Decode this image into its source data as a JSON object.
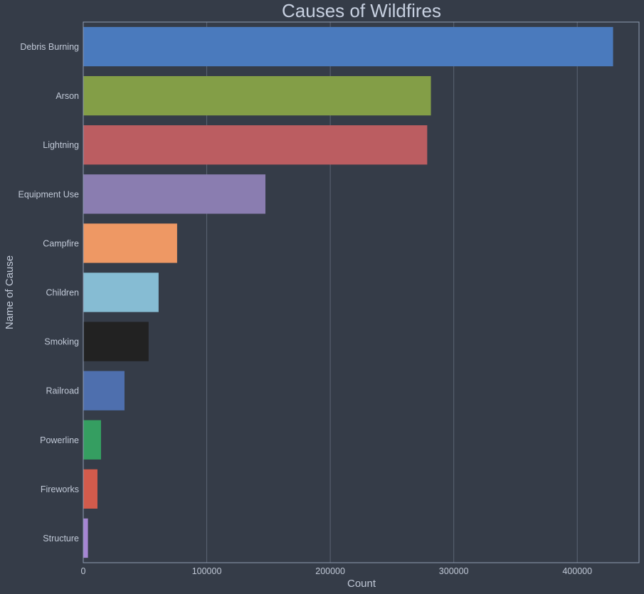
{
  "chart_data": {
    "type": "bar",
    "orientation": "horizontal",
    "title": "Causes of Wildfires",
    "xlabel": "Count",
    "ylabel": "Name of Cause",
    "xlim": [
      0,
      450000
    ],
    "xticks": [
      0,
      100000,
      200000,
      300000,
      400000
    ],
    "xtick_labels": [
      "0",
      "100000",
      "200000",
      "300000",
      "400000"
    ],
    "grid": "vertical",
    "categories": [
      "Debris Burning",
      "Arson",
      "Lightning",
      "Equipment Use",
      "Campfire",
      "Children",
      "Smoking",
      "Railroad",
      "Powerline",
      "Fireworks",
      "Structure"
    ],
    "values": [
      429000,
      281500,
      278500,
      147500,
      76000,
      61000,
      52900,
      33400,
      14400,
      11500,
      3800
    ],
    "colors": [
      "#4a7abd",
      "#839e47",
      "#bb5d61",
      "#8a7db0",
      "#ee9864",
      "#86bcd3",
      "#222222",
      "#4e6fae",
      "#359e61",
      "#d25b4c",
      "#a686d3"
    ]
  }
}
